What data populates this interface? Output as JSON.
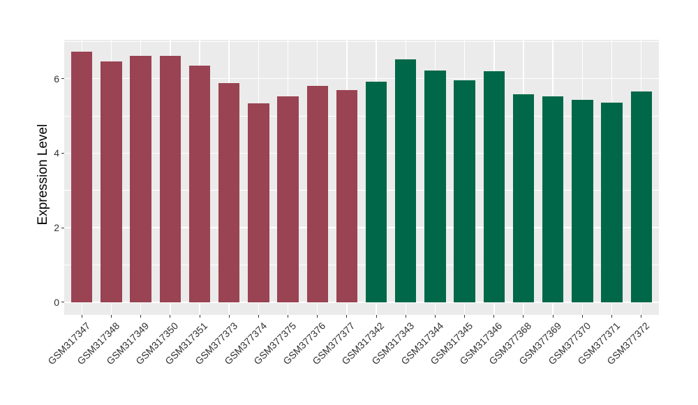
{
  "figure": {
    "background_color": "#FFFFFF",
    "panel_background_color": "#EBEBEB",
    "gridline_color": "#FFFFFF",
    "axis_text_color": "#303030",
    "axis_title_color": "#000000"
  },
  "chart_data": {
    "type": "bar",
    "title": "",
    "xlabel": "",
    "ylabel": "Expression Level",
    "legend": "none",
    "grid": true,
    "categories": [
      "GSM317347",
      "GSM317348",
      "GSM317349",
      "GSM317350",
      "GSM317351",
      "GSM377373",
      "GSM377374",
      "GSM377375",
      "GSM377376",
      "GSM377377",
      "GSM317342",
      "GSM317343",
      "GSM317344",
      "GSM317345",
      "GSM317346",
      "GSM377368",
      "GSM377369",
      "GSM377370",
      "GSM377371",
      "GSM377372"
    ],
    "values": [
      6.72,
      6.45,
      6.6,
      6.6,
      6.34,
      5.88,
      5.33,
      5.52,
      5.8,
      5.7,
      5.91,
      6.51,
      6.22,
      5.96,
      6.19,
      5.58,
      5.52,
      5.43,
      5.36,
      5.65
    ],
    "bar_groups": [
      1,
      1,
      1,
      1,
      1,
      1,
      1,
      1,
      1,
      1,
      2,
      2,
      2,
      2,
      2,
      2,
      2,
      2,
      2,
      2
    ],
    "group_colors": {
      "1": "#9A4352",
      "2": "#006848"
    },
    "yticks": [
      0,
      2,
      4,
      6
    ],
    "ytick_labels": [
      "0",
      "2",
      "4",
      "6"
    ],
    "yticks_minor": [
      1,
      3,
      5,
      7
    ],
    "ylim": [
      -0.34,
      7.04
    ]
  }
}
